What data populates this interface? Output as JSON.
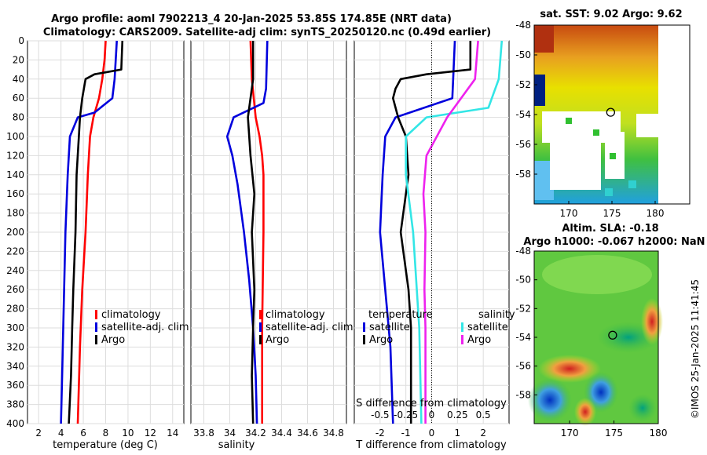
{
  "title": {
    "line1": "Argo profile: aoml 7902213_4 20-Jan-2025 53.85S 174.85E (NRT data)",
    "line2": "Climatology: CARS2009. Satellite-adj clim: synTS_20250120.nc (0.49d earlier)"
  },
  "watermark": "©IMOS 25-Jan-2025 11:41:45",
  "depth_ticks": [
    "0",
    "20",
    "40",
    "60",
    "80",
    "100",
    "120",
    "140",
    "160",
    "180",
    "200",
    "220",
    "240",
    "260",
    "280",
    "300",
    "320",
    "340",
    "360",
    "380",
    "400"
  ],
  "colors": {
    "climatology": "#ff0000",
    "satellite": "#0000dd",
    "argo": "#000000",
    "sal_sat": "#33e6e6",
    "sal_argo": "#ee22ee"
  },
  "chart_data": [
    {
      "type": "line",
      "name": "temperature-panel",
      "xlabel": "temperature (deg C)",
      "xlim": [
        1,
        15
      ],
      "ylim": [
        0,
        400
      ],
      "xticks": [
        "2",
        "4",
        "6",
        "8",
        "10",
        "12",
        "14"
      ],
      "legend": [
        "climatology",
        "satellite-adj. clim",
        "Argo"
      ],
      "series": [
        {
          "name": "climatology",
          "depth": [
            0,
            20,
            40,
            60,
            80,
            100,
            140,
            200,
            260,
            320,
            400
          ],
          "values": [
            8.0,
            7.9,
            7.7,
            7.4,
            6.9,
            6.6,
            6.4,
            6.2,
            5.9,
            5.7,
            5.5
          ]
        },
        {
          "name": "satellite-adj. clim",
          "depth": [
            0,
            20,
            40,
            60,
            75,
            80,
            100,
            140,
            200,
            250,
            300,
            350,
            400
          ],
          "values": [
            9.0,
            8.9,
            8.8,
            8.6,
            7.0,
            5.5,
            4.8,
            4.6,
            4.4,
            4.3,
            4.2,
            4.1,
            4.0
          ]
        },
        {
          "name": "Argo",
          "depth": [
            0,
            30,
            35,
            40,
            60,
            80,
            100,
            140,
            200,
            260,
            300,
            350,
            400
          ],
          "values": [
            9.5,
            9.4,
            7.0,
            6.2,
            5.9,
            5.7,
            5.6,
            5.4,
            5.3,
            5.1,
            5.0,
            4.9,
            4.7
          ]
        }
      ]
    },
    {
      "type": "line",
      "name": "salinity-panel",
      "xlabel": "salinity",
      "xlim": [
        33.7,
        34.9
      ],
      "ylim": [
        0,
        400
      ],
      "xticks": [
        "33.8",
        "34",
        "34.2",
        "34.4",
        "34.6",
        "34.8"
      ],
      "legend": [
        "climatology",
        "satellite-adj. clim",
        "Argo"
      ],
      "series": [
        {
          "name": "climatology",
          "depth": [
            0,
            40,
            80,
            100,
            120,
            140,
            200,
            300,
            400
          ],
          "values": [
            34.16,
            34.17,
            34.2,
            34.23,
            34.25,
            34.26,
            34.26,
            34.25,
            34.25
          ]
        },
        {
          "name": "satellite-adj. clim",
          "depth": [
            0,
            50,
            65,
            80,
            100,
            120,
            150,
            200,
            250,
            300,
            350,
            400
          ],
          "values": [
            34.29,
            34.28,
            34.26,
            34.03,
            33.98,
            34.02,
            34.06,
            34.11,
            34.15,
            34.18,
            34.2,
            34.21
          ]
        },
        {
          "name": "Argo",
          "depth": [
            0,
            40,
            80,
            120,
            160,
            200,
            260,
            300,
            350,
            400
          ],
          "values": [
            34.18,
            34.18,
            34.14,
            34.16,
            34.19,
            34.17,
            34.19,
            34.18,
            34.17,
            34.18
          ]
        }
      ]
    },
    {
      "type": "line",
      "name": "difference-panel",
      "xlabel": "T difference from climatology",
      "xlabel2": "S difference from climatology",
      "xlim": [
        -3,
        3
      ],
      "ylim": [
        0,
        400
      ],
      "xticks": [
        "-2",
        "-1",
        "0",
        "1",
        "2"
      ],
      "xticks2": [
        "-0.5",
        "-0.25",
        "0",
        "0.25",
        "0.5"
      ],
      "legend_t_title": "temperature",
      "legend_s_title": "salinity",
      "legend_t": [
        "satellite",
        "Argo"
      ],
      "legend_s": [
        "satellite",
        "Argo"
      ],
      "series": [
        {
          "name": "T satellite",
          "depth": [
            0,
            60,
            80,
            100,
            140,
            200,
            260,
            320,
            400
          ],
          "values": [
            0.9,
            0.8,
            -1.4,
            -1.8,
            -1.9,
            -2.0,
            -1.8,
            -1.6,
            -1.5
          ]
        },
        {
          "name": "T Argo",
          "depth": [
            0,
            30,
            35,
            40,
            50,
            60,
            80,
            100,
            140,
            200,
            260,
            300,
            340,
            400
          ],
          "values": [
            1.5,
            1.5,
            -0.2,
            -1.2,
            -1.4,
            -1.5,
            -1.3,
            -1.0,
            -0.9,
            -1.2,
            -0.9,
            -0.8,
            -0.8,
            -0.8
          ]
        },
        {
          "name": "S satellite",
          "depth": [
            0,
            40,
            70,
            80,
            100,
            140,
            200,
            300,
            400
          ],
          "values": [
            0.68,
            0.65,
            0.55,
            -0.05,
            -0.25,
            -0.25,
            -0.18,
            -0.12,
            -0.1
          ]
        },
        {
          "name": "S Argo",
          "depth": [
            0,
            40,
            80,
            120,
            160,
            200,
            260,
            300,
            340,
            400
          ],
          "values": [
            0.45,
            0.42,
            0.15,
            -0.05,
            -0.08,
            -0.06,
            -0.07,
            -0.06,
            -0.06,
            -0.06
          ]
        }
      ]
    },
    {
      "type": "heatmap",
      "name": "sst-map",
      "title": "sat. SST: 9.02 Argo: 9.62",
      "xlim": [
        166,
        184
      ],
      "ylim": [
        -60,
        -48
      ],
      "xticks": [
        "170",
        "175",
        "180"
      ],
      "yticks": [
        "-48",
        "-50",
        "-52",
        "-54",
        "-56",
        "-58"
      ],
      "marker": {
        "lon": 174.85,
        "lat": -53.85
      }
    },
    {
      "type": "heatmap",
      "name": "sla-map",
      "title": "Altim. SLA: -0.18",
      "subtitle": "Argo h1000: -0.067 h2000: NaN",
      "xlim": [
        166,
        180
      ],
      "ylim": [
        -60,
        -48
      ],
      "xticks": [
        "170",
        "175",
        "180"
      ],
      "yticks": [
        "-48",
        "-50",
        "-52",
        "-54",
        "-56",
        "-58"
      ],
      "marker": {
        "lon": 174.85,
        "lat": -53.85
      }
    }
  ]
}
